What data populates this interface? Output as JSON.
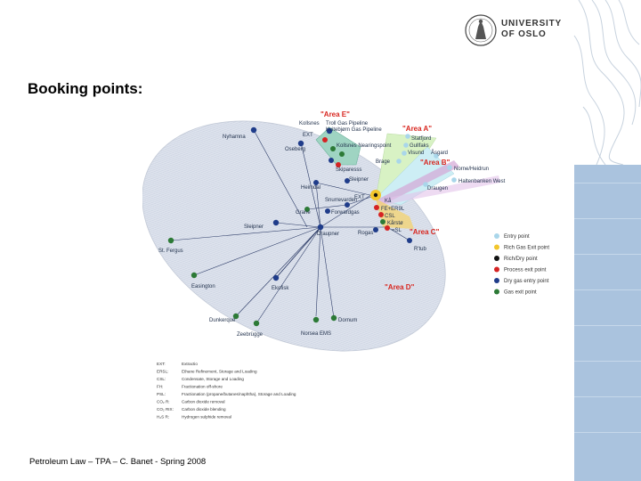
{
  "header": {
    "university_line1": "UNIVERSITY",
    "university_line2": "OF OSLO"
  },
  "title": "Booking points:",
  "footer": "Petroleum Law – TPA – C. Banet - Spring 2008",
  "diagram": {
    "areas": {
      "area_e": "\"Area E\"",
      "area_a": "\"Area A\"",
      "area_b": "\"Area B\"",
      "area_c": "\"Area C\"",
      "area_d": "\"Area D\""
    },
    "points": {
      "kollsnes": "Kollsnes",
      "troll_gas_pipeline": "Troll Gas Pipeline",
      "kvitebjorn": "Kvitebjørn Gas Pipeline",
      "ext1": "EXT",
      "nyhamna": "Nyhamna",
      "oseberg": "Oseberg",
      "kollsnes_nearing": "Kollsnes Nearingspoint",
      "statfjord": "Statfjord",
      "gullfaks": "Gullfaks",
      "visund": "Visund",
      "brage": "Brage",
      "asgard": "Åsgard",
      "norne": "Norne/Heidrun",
      "haltenbanken": "Haltenbanken West",
      "draugen": "Draugen",
      "skiparesss": "Skiparesss",
      "sleipner_top": "Sleipner",
      "heimdal": "Heimdal",
      "snurrevarden": "Snurrevarden",
      "ext2": "EXT",
      "ka": "Kå",
      "grane": "Grane",
      "forwardgas": "Forwardgas",
      "fe_er": "FE+ER9L",
      "csl": "CSL",
      "karsto": "Kårstø",
      "sl": "=SL",
      "sleipner": "Sleipner",
      "draupner": "Draupner",
      "rogas": "Rogas",
      "rtub": "R'tub",
      "st_fergus": "St. Fergus",
      "easington": "Easington",
      "ekofisk": "Ekofisk",
      "dunkerque": "Dunkerque",
      "zeebrugge": "Zeebrügge",
      "dornum": "Dornum",
      "norsea": "Norsea EMS"
    },
    "legend": [
      {
        "label": "Entry point",
        "color": "#a9d6ea"
      },
      {
        "label": "Rich Gas Exit point",
        "color": "#f2c62c"
      },
      {
        "label": "Rich/Dry point",
        "color": "#111111"
      },
      {
        "label": "Process exit point",
        "color": "#d52323"
      },
      {
        "label": "Dry gas entry point",
        "color": "#1f3c8a"
      },
      {
        "label": "Gas exit point",
        "color": "#2c7a36"
      }
    ],
    "abbreviations": [
      {
        "code": "EXT:",
        "text": "Extractio"
      },
      {
        "code": "ERSL:",
        "text": "Ethane Refinement, Storage and Loading"
      },
      {
        "code": "CSL:",
        "text": "Condensate, Storage and Loading"
      },
      {
        "code": "FH:",
        "text": "Fractionation off-shore"
      },
      {
        "code": "PSL:",
        "text": "Fractionation (propane/butanes/naphtha), Storage and Loading"
      },
      {
        "code": "CO₂ R:",
        "text": "Carbon dioxide removal"
      },
      {
        "code": "CO₂ RIX:",
        "text": "Carbon dioxide blending"
      },
      {
        "code": "H₂S R:",
        "text": "Hydrogen sulphide removal"
      }
    ]
  }
}
